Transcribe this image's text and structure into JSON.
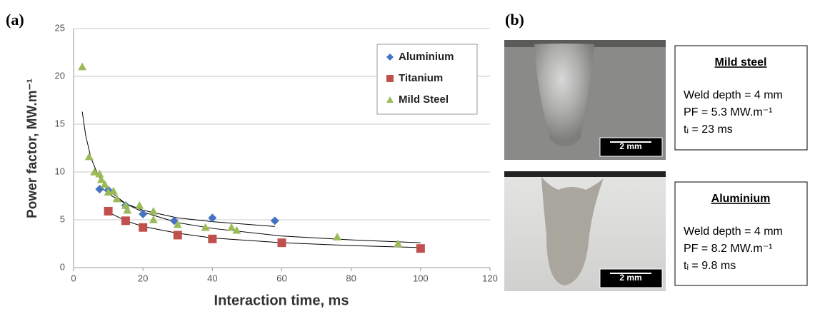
{
  "chart_data": {
    "type": "scatter",
    "panel_label": "(a)",
    "x_label": "Interaction time, ms",
    "y_label": "Power factor, MW.m⁻¹",
    "xlim": [
      0,
      120
    ],
    "xticks": [
      0,
      20,
      40,
      60,
      80,
      100,
      120
    ],
    "ylim": [
      0,
      25
    ],
    "yticks": [
      0,
      5,
      10,
      15,
      20,
      25
    ],
    "grid": true,
    "legend": "upper right",
    "series": [
      {
        "name": "Aluminium",
        "color": "#4472c4",
        "marker": "diamond",
        "x": [
          7.5,
          10,
          15,
          20,
          29,
          40,
          58
        ],
        "values": [
          8.2,
          8.1,
          6.5,
          5.6,
          4.9,
          5.2,
          4.9
        ]
      },
      {
        "name": "Titanium",
        "color": "#c0504d",
        "marker": "square",
        "x": [
          10,
          15,
          20,
          30,
          40,
          60,
          100
        ],
        "values": [
          5.9,
          4.9,
          4.2,
          3.4,
          3.0,
          2.6,
          2.0
        ]
      },
      {
        "name": "Mild Steel",
        "color": "#9bbb59",
        "marker": "triangle",
        "x": [
          2.5,
          4.5,
          6,
          7.5,
          8,
          9,
          10,
          11.5,
          12.5,
          15,
          15.5,
          19,
          23,
          23,
          30,
          38,
          45.5,
          47,
          76,
          93.5
        ],
        "values": [
          21,
          11.6,
          10,
          9.8,
          9.2,
          8.7,
          7.9,
          8,
          7.2,
          6.5,
          6,
          6.5,
          5.9,
          5,
          4.5,
          4.2,
          4.2,
          3.9,
          3.2,
          2.5
        ]
      }
    ],
    "trendlines": [
      {
        "color": "#000000",
        "x": [
          2.5,
          3.5,
          5,
          7,
          10,
          15,
          20,
          30,
          40,
          60,
          80,
          100
        ],
        "values": [
          16.3,
          13.8,
          11.5,
          9.7,
          8.1,
          6.7,
          5.8,
          4.7,
          4.1,
          3.3,
          2.9,
          2.6
        ]
      },
      {
        "color": "#000000",
        "x": [
          7.5,
          10,
          15,
          20,
          30,
          40,
          58
        ],
        "values": [
          8.6,
          7.7,
          6.7,
          6.0,
          5.2,
          4.8,
          4.3
        ]
      },
      {
        "color": "#000000",
        "x": [
          10,
          15,
          20,
          30,
          40,
          60,
          80,
          100
        ],
        "values": [
          5.8,
          4.9,
          4.3,
          3.6,
          3.1,
          2.6,
          2.3,
          2.1
        ]
      }
    ]
  },
  "panel_b": {
    "label": "(b)",
    "items": [
      {
        "scale_bar": "2 mm",
        "title": "Mild steel",
        "lines": [
          "Weld depth = 4 mm",
          "PF = 5.3 MW.m⁻¹",
          "tᵢ = 23 ms"
        ]
      },
      {
        "scale_bar": "2 mm",
        "title": "Aluminium",
        "lines": [
          "Weld depth = 4 mm",
          "PF = 8.2 MW.m⁻¹",
          "tᵢ = 9.8 ms"
        ]
      }
    ]
  }
}
